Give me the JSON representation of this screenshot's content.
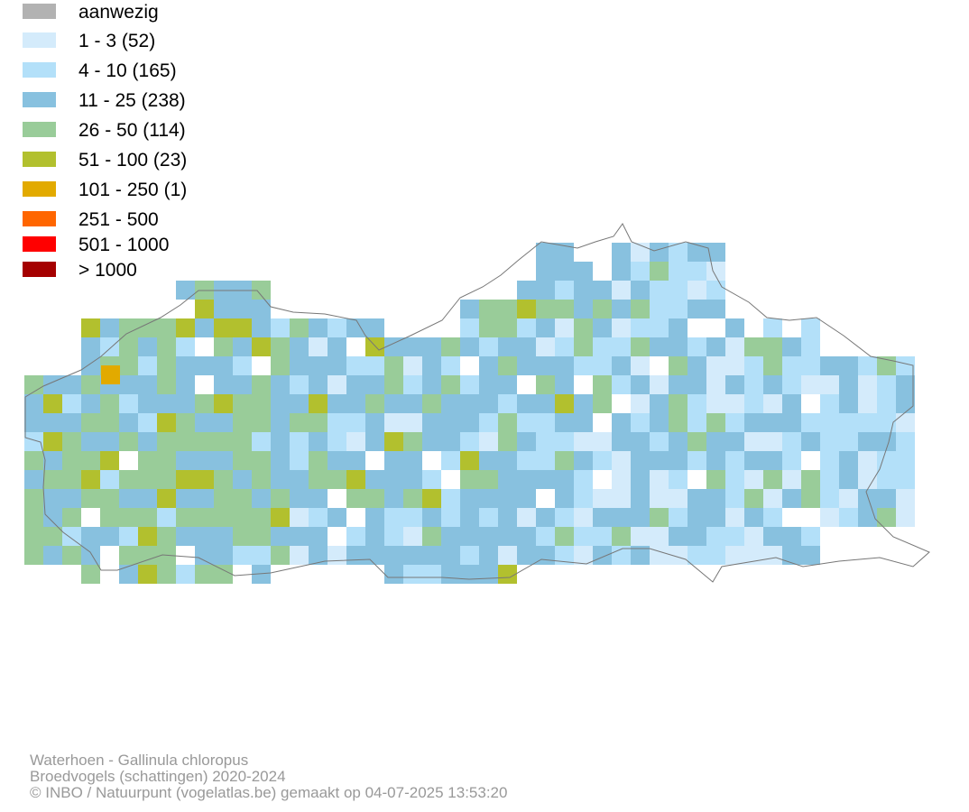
{
  "legend": {
    "items": [
      {
        "label": "aanwezig",
        "color": "#b2b2b2"
      },
      {
        "label": "1 - 3 (52)",
        "color": "#d4ebfb"
      },
      {
        "label": "4 - 10 (165)",
        "color": "#b3e0f9"
      },
      {
        "label": "11 - 25 (238)",
        "color": "#88c1df"
      },
      {
        "label": "26 - 50 (114)",
        "color": "#99cc99"
      },
      {
        "label": "51 - 100 (23)",
        "color": "#b2c02e"
      },
      {
        "label": "101 - 250 (1)",
        "color": "#e2aa00"
      },
      {
        "label": "251 - 500",
        "color": "#ff6600"
      },
      {
        "label": "501 - 1000",
        "color": "#ff0000"
      },
      {
        "label": "> 1000",
        "color": "#a50000"
      }
    ]
  },
  "map": {
    "region": "Vlaanderen",
    "border_color": "#777777"
  },
  "credits": {
    "species": "Waterhoen - Gallinula chloropus",
    "dataset": "Broedvogels (schattingen) 2020-2024",
    "copyright": "© INBO / Natuurpunt (vogelatlas.be) gemaakt op 04-07-2025 13:53:20"
  }
}
